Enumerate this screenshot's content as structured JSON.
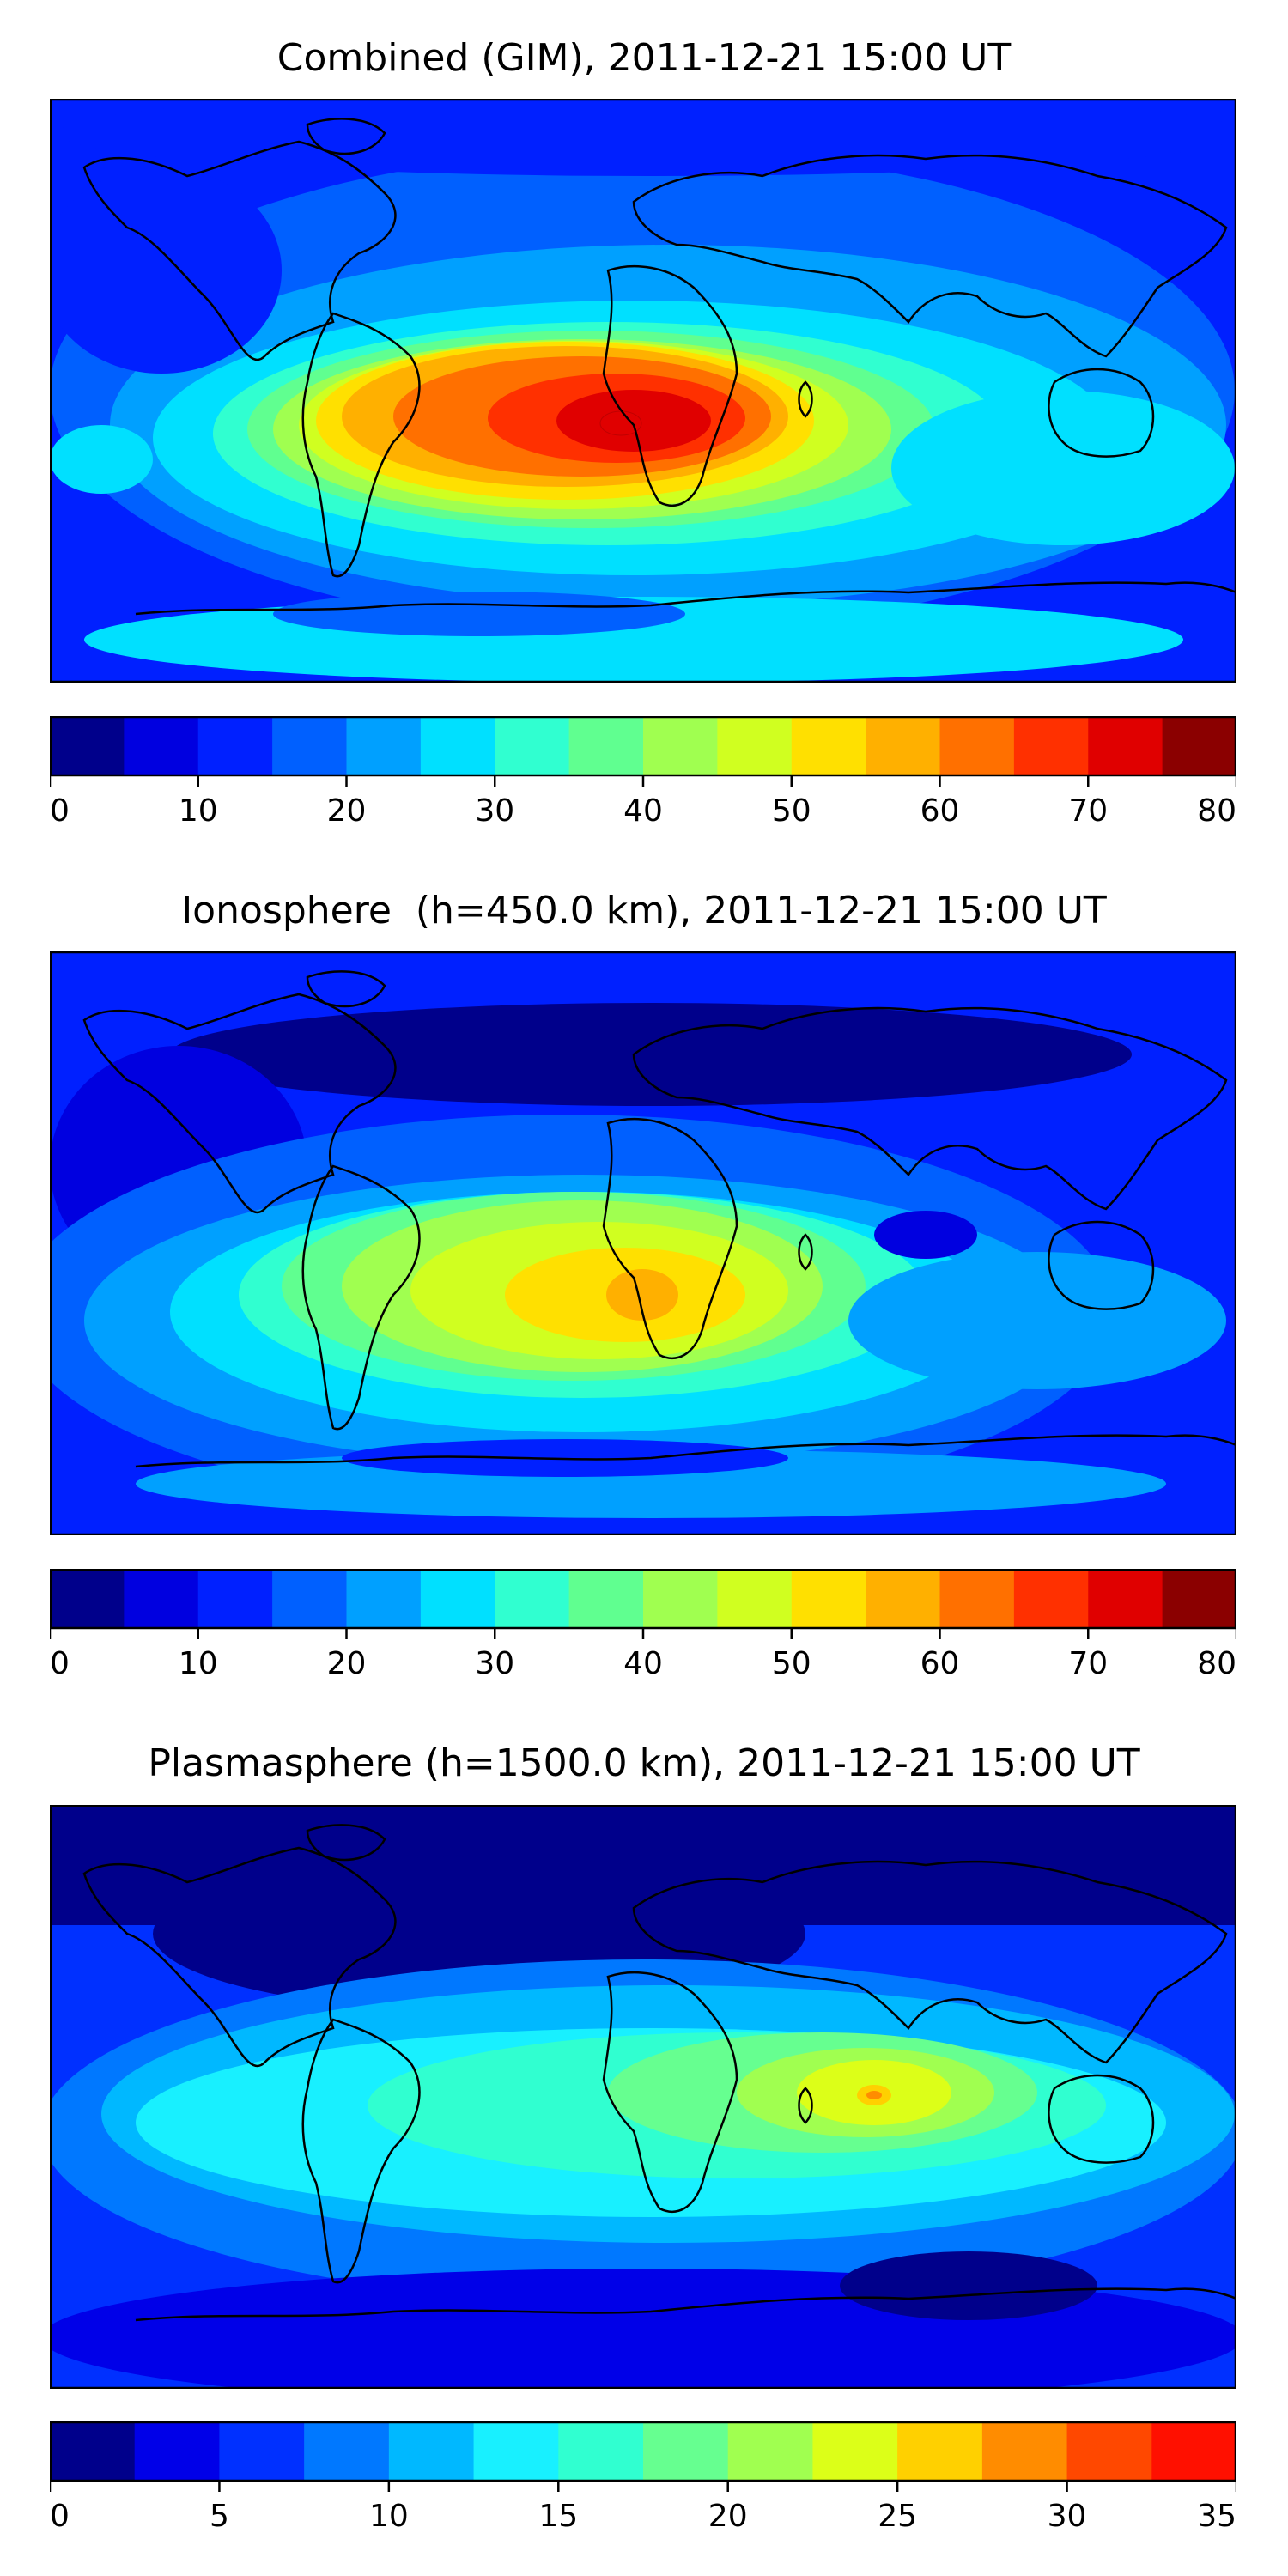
{
  "chart_data": [
    {
      "type": "heatmap",
      "title": "Combined (GIM), 2011-12-21 15:00 UT",
      "colorbar_levels": [
        0,
        5,
        10,
        15,
        20,
        25,
        30,
        35,
        40,
        45,
        50,
        55,
        60,
        65,
        70,
        75,
        80
      ],
      "colorbar_ticks": [
        "0",
        "10",
        "20",
        "30",
        "40",
        "50",
        "60",
        "70",
        "80"
      ],
      "value_range": [
        0,
        80
      ],
      "max_region": "South Atlantic between South America and Africa",
      "max_value_approx": 72
    },
    {
      "type": "heatmap",
      "title": "Ionosphere  (h=450.0 km), 2011-12-21 15:00 UT",
      "colorbar_levels": [
        0,
        5,
        10,
        15,
        20,
        25,
        30,
        35,
        40,
        45,
        50,
        55,
        60,
        65,
        70,
        75,
        80
      ],
      "colorbar_ticks": [
        "0",
        "10",
        "20",
        "30",
        "40",
        "50",
        "60",
        "70",
        "80"
      ],
      "value_range": [
        0,
        80
      ],
      "max_region": "South Atlantic between South America and Africa",
      "max_value_approx": 57
    },
    {
      "type": "heatmap",
      "title": "Plasmasphere (h=1500.0 km), 2011-12-21 15:00 UT",
      "colorbar_levels": [
        0,
        2.5,
        5,
        7.5,
        10,
        12.5,
        15,
        17.5,
        20,
        22.5,
        25,
        27.5,
        30,
        32.5,
        35
      ],
      "colorbar_ticks": [
        "0",
        "5",
        "10",
        "15",
        "20",
        "25",
        "30",
        "35"
      ],
      "value_range": [
        0,
        35
      ],
      "max_region": "Arabian Sea / India",
      "max_value_approx": 26
    }
  ],
  "colors": {
    "jet16": [
      "#00008b",
      "#0000e0",
      "#0020ff",
      "#0060ff",
      "#00a0ff",
      "#00e0ff",
      "#30ffd0",
      "#60ff90",
      "#a0ff50",
      "#d0ff20",
      "#ffe000",
      "#ffb000",
      "#ff7000",
      "#ff3000",
      "#e00000",
      "#8b0000"
    ],
    "jet14": [
      "#00008b",
      "#0000e8",
      "#0030ff",
      "#0078ff",
      "#00b8ff",
      "#18f0ff",
      "#30ffd0",
      "#66ff90",
      "#a0ff50",
      "#dcff18",
      "#ffd000",
      "#ff8c00",
      "#ff4800",
      "#ff1000"
    ]
  }
}
